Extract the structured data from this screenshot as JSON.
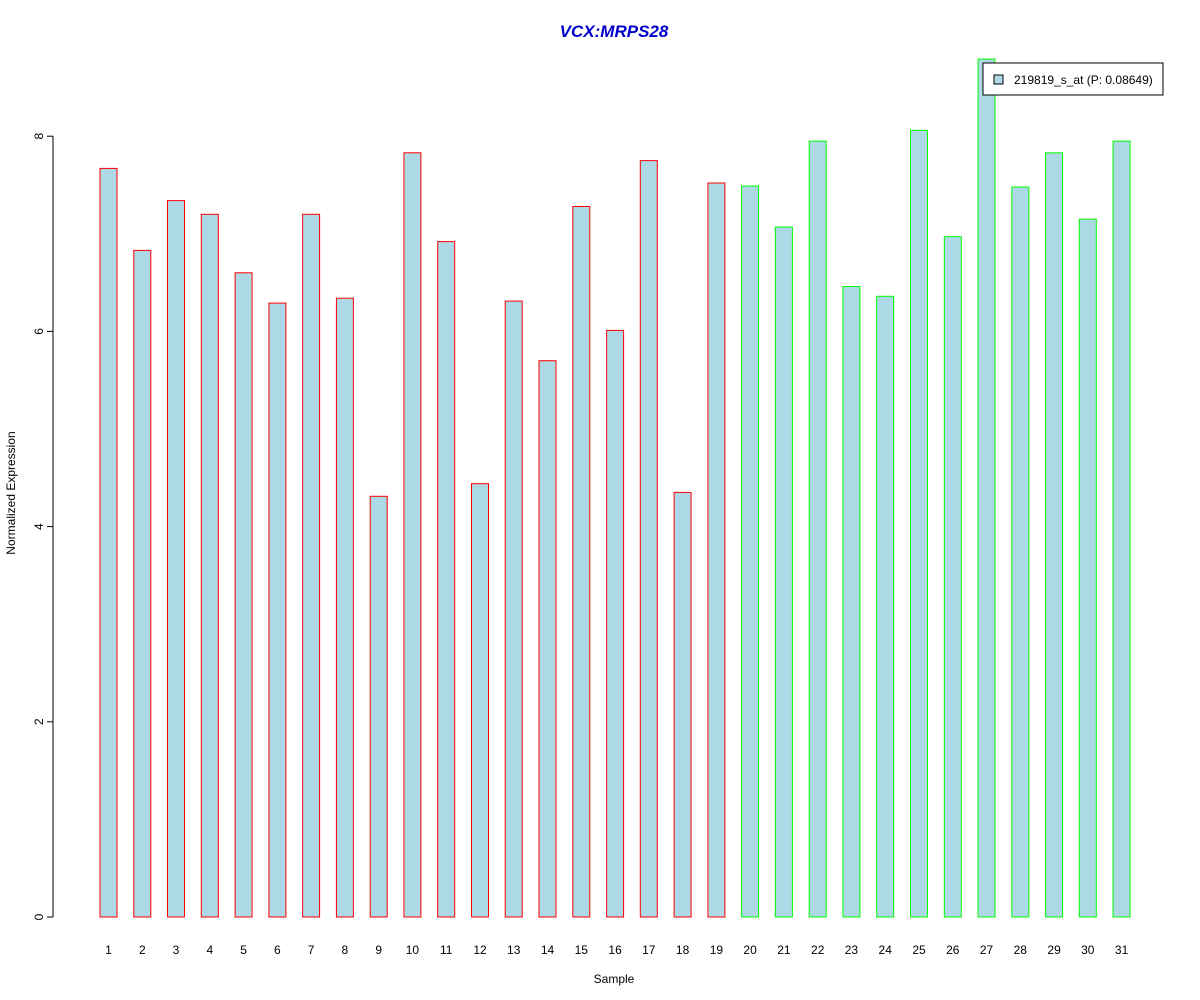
{
  "chart_data": {
    "type": "bar",
    "title": "VCX:MRPS28",
    "xlabel": "Sample",
    "ylabel": "Normalized Expression",
    "categories": [
      "1",
      "2",
      "3",
      "4",
      "5",
      "6",
      "7",
      "8",
      "9",
      "10",
      "11",
      "12",
      "13",
      "14",
      "15",
      "16",
      "17",
      "18",
      "19",
      "20",
      "21",
      "22",
      "23",
      "24",
      "25",
      "26",
      "27",
      "28",
      "29",
      "30",
      "31"
    ],
    "series": [
      {
        "name": "219819_s_at (P: 0.08649)",
        "values": [
          7.67,
          6.83,
          7.34,
          7.2,
          6.6,
          6.29,
          7.2,
          6.34,
          4.31,
          7.83,
          6.92,
          4.44,
          6.31,
          5.7,
          7.28,
          6.01,
          7.75,
          4.35,
          7.52,
          7.49,
          7.07,
          7.95,
          6.46,
          6.36,
          8.06,
          6.97,
          8.79,
          7.48,
          7.83,
          7.15,
          7.95
        ]
      }
    ],
    "groups": [
      {
        "samples": [
          1,
          19
        ],
        "border_color": "#ff0000"
      },
      {
        "samples": [
          20,
          31
        ],
        "border_color": "#00ff00"
      }
    ],
    "ylim": [
      0,
      8.8
    ],
    "yticks": [
      "0",
      "2",
      "4",
      "6",
      "8"
    ],
    "grid": false,
    "legend_position": "top-right",
    "colors": {
      "title": "#0000cc",
      "bar_fill": "#add8e6"
    }
  }
}
